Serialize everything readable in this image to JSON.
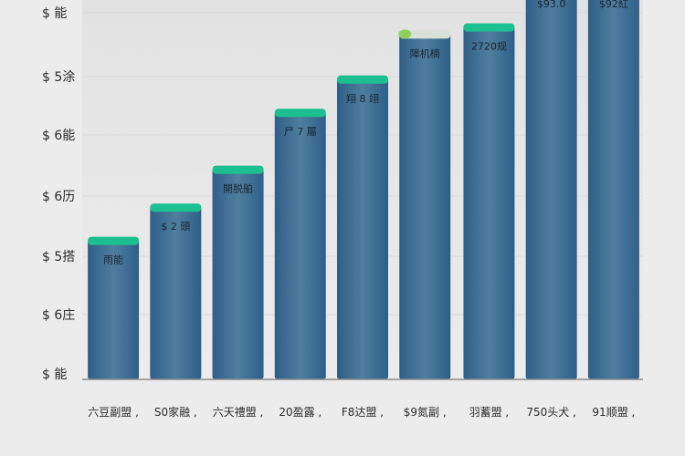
{
  "chart_data": {
    "type": "bar",
    "title": "",
    "xlabel": "",
    "ylabel": "",
    "ylim": [
      0,
      8
    ],
    "yticks": [
      "$ 能",
      "$ 5涂",
      "$ 6能",
      "$ 6历",
      "$ 5搭",
      "$ 6庄",
      "$ 能"
    ],
    "categories": [
      "六豆副盟",
      "S0家融",
      "六天禮盟",
      "20盈露",
      "F8达盟",
      "$9氮副",
      "羽蓄盟",
      "750头犬",
      "91顺盟"
    ],
    "values": [
      2.95,
      3.65,
      4.45,
      5.65,
      6.35,
      7.3,
      7.45,
      8.3,
      8.3
    ],
    "data_labels": [
      "雨能",
      "$ 2 頭",
      "開脱舶",
      "尸 7 屬",
      "翔 8 翊",
      "障机楠",
      "2720规",
      "$93.0",
      "$92紅"
    ],
    "colors": {
      "bar_top": "#2f5f88",
      "bar_mid": "#5a8aa4",
      "cap": "#1cc090",
      "cap_small": "#8ed05a",
      "axis": "#8a8a8a",
      "grid": "#d8d8d8"
    }
  }
}
